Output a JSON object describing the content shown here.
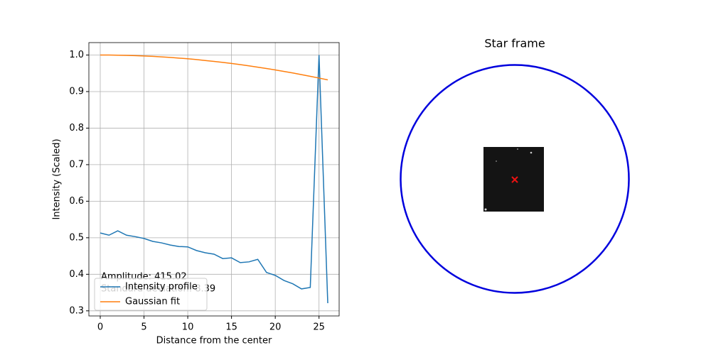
{
  "chart_data": [
    {
      "type": "line",
      "x_label": "Distance from the center",
      "y_label": "Intensity (Scaled)",
      "x": [
        0,
        1,
        2,
        3,
        4,
        5,
        6,
        7,
        8,
        9,
        10,
        11,
        12,
        13,
        14,
        15,
        16,
        17,
        18,
        19,
        20,
        21,
        22,
        23,
        24,
        25,
        26
      ],
      "series": [
        {
          "name": "Intensity profile",
          "color": "#1f77b4",
          "values": [
            0.513,
            0.507,
            0.519,
            0.507,
            0.503,
            0.498,
            0.49,
            0.486,
            0.48,
            0.476,
            0.475,
            0.465,
            0.459,
            0.455,
            0.443,
            0.445,
            0.432,
            0.434,
            0.441,
            0.405,
            0.397,
            0.383,
            0.374,
            0.36,
            0.364,
            1.0,
            0.321
          ]
        },
        {
          "name": "Gaussian fit",
          "color": "#ff7f0e",
          "values": [
            1.0,
            0.9999,
            0.9996,
            0.9991,
            0.9983,
            0.9974,
            0.9963,
            0.9949,
            0.9934,
            0.9916,
            0.9897,
            0.9875,
            0.985,
            0.9826,
            0.9798,
            0.9769,
            0.9737,
            0.9704,
            0.9668,
            0.9631,
            0.9592,
            0.9551,
            0.951,
            0.9464,
            0.9418,
            0.937,
            0.932
          ]
        }
      ],
      "annotations": [
        "Amplitude: 415.02",
        "Standard deviation: 8.39"
      ],
      "xlim": [
        -1.3,
        27.3
      ],
      "xticks": [
        0,
        5,
        10,
        15,
        20,
        25
      ],
      "ylim": [
        0.286,
        1.034
      ],
      "yticks": [
        0.3,
        0.4,
        0.5,
        0.6,
        0.7,
        0.8,
        0.9,
        {
          "value": 1.0,
          "label": "1.0"
        }
      ],
      "grid": true,
      "legend": "lower left"
    },
    {
      "type": "image",
      "title": "Star frame"
    }
  ]
}
